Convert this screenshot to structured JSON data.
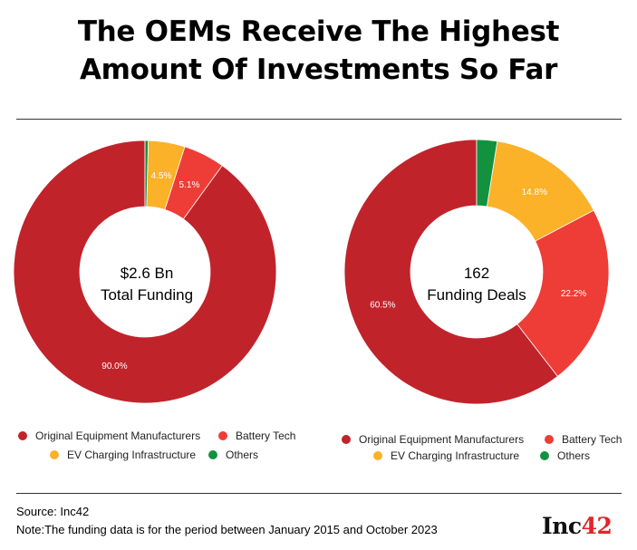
{
  "title": {
    "line1": "The OEMs Receive The Highest",
    "line2": "Amount Of Investments So Far"
  },
  "colors": {
    "oem": "#c1232b",
    "battery": "#ee3d36",
    "ev_charging": "#fbb128",
    "others": "#12923f"
  },
  "chart_data": [
    {
      "type": "pie",
      "center_text": [
        "$2.6 Bn",
        "Total Funding"
      ],
      "categories": [
        "Original Equipment Manufacturers",
        "Battery Tech",
        "EV Charging Infrastructure",
        "Others"
      ],
      "values": [
        90.0,
        5.1,
        4.5,
        0.4
      ],
      "labels": [
        "90.0%",
        "5.1%",
        "4.5%",
        ""
      ],
      "legend_position": "bottom"
    },
    {
      "type": "pie",
      "center_text": [
        "162",
        "Funding Deals"
      ],
      "categories": [
        "Original Equipment Manufacturers",
        "Battery Tech",
        "EV Charging Infrastructure",
        "Others"
      ],
      "values": [
        60.5,
        22.2,
        14.8,
        2.5
      ],
      "labels": [
        "60.5%",
        "22.2%",
        "14.8%",
        ""
      ],
      "legend_position": "bottom"
    }
  ],
  "legend": {
    "oem": "Original Equipment Manufacturers",
    "battery": "Battery Tech",
    "ev_charging": "EV Charging Infrastructure",
    "others": "Others"
  },
  "footer": {
    "source": "Source: Inc42",
    "note": "Note:The funding data is for the period between January 2015 and October 2023"
  },
  "logo": {
    "main": "Inc",
    "accent": "42"
  }
}
